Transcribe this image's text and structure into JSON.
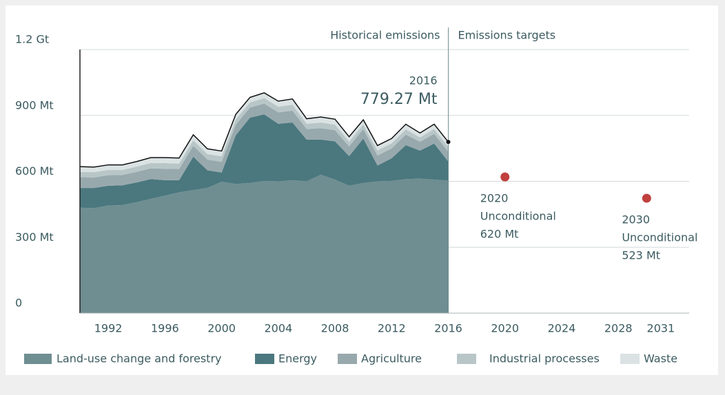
{
  "chart_data": {
    "type": "stacked_area",
    "section_labels": [
      "Historical emissions",
      "Emissions targets"
    ],
    "x": [
      1990,
      1991,
      1992,
      1993,
      1994,
      1995,
      1996,
      1997,
      1998,
      1999,
      2000,
      2001,
      2002,
      2003,
      2004,
      2005,
      2006,
      2007,
      2008,
      2009,
      2010,
      2011,
      2012,
      2013,
      2014,
      2015,
      2016
    ],
    "series": [
      {
        "name": "Land-use change and forestry",
        "color": "#6f8e92",
        "values": [
          480,
          478,
          490,
          492,
          505,
          520,
          535,
          550,
          560,
          570,
          598,
          588,
          592,
          602,
          600,
          605,
          600,
          630,
          608,
          580,
          592,
          600,
          602,
          610,
          612,
          608,
          603
        ]
      },
      {
        "name": "Energy",
        "color": "#4a787e",
        "values": [
          90,
          92,
          90,
          90,
          90,
          90,
          70,
          55,
          152,
          80,
          42,
          222,
          298,
          303,
          262,
          263,
          190,
          160,
          174,
          135,
          203,
          72,
          103,
          155,
          128,
          164,
          87
        ]
      },
      {
        "name": "Agriculture",
        "color": "#98a9ad",
        "values": [
          49,
          48,
          48,
          47,
          48,
          49,
          52,
          51,
          50,
          49,
          49,
          48,
          46,
          49,
          52,
          54,
          48,
          52,
          51,
          44,
          43,
          46,
          45,
          48,
          40,
          44,
          45
        ]
      },
      {
        "name": "Industrial processes",
        "color": "#b9c6c8",
        "values": [
          24,
          24,
          24,
          23,
          24,
          25,
          26,
          25,
          25,
          25,
          25,
          24,
          23,
          25,
          26,
          27,
          24,
          26,
          25,
          22,
          21,
          23,
          23,
          24,
          20,
          22,
          22
        ]
      },
      {
        "name": "Waste",
        "color": "#dae2e3",
        "values": [
          24,
          23,
          23,
          23,
          23,
          24,
          25,
          25,
          25,
          24,
          24,
          23,
          23,
          24,
          25,
          26,
          23,
          25,
          25,
          22,
          21,
          22,
          22,
          23,
          20,
          22,
          22.27
        ]
      }
    ],
    "annotation": {
      "x": 2016,
      "value": 779.27,
      "label": "779.27 Mt"
    },
    "targets": [
      {
        "x": 2020,
        "value": 620,
        "color": "#c0403e",
        "label": [
          "2020",
          "Unconditional",
          "620 Mt"
        ]
      },
      {
        "x": 2030,
        "value": 523,
        "color": "#c0403e",
        "label": [
          "2030",
          "Unconditional",
          "523 Mt"
        ]
      }
    ],
    "xlim": [
      1990,
      2033
    ],
    "xticks": [
      1992,
      1996,
      2000,
      2004,
      2008,
      2012,
      2016,
      2020,
      2024,
      2028,
      2031
    ],
    "ylim": [
      0,
      1200
    ],
    "yticks": [
      0,
      {
        "value": 300,
        "label": "300 Mt"
      },
      {
        "value": 600,
        "label": "600 Mt"
      },
      {
        "value": 900,
        "label": "900 Mt"
      },
      {
        "value": 1200,
        "label": "1.2 Gt"
      }
    ],
    "grid": true
  }
}
